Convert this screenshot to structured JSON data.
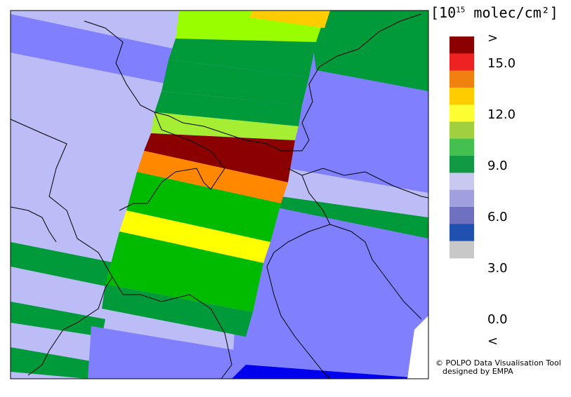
{
  "legend": {
    "unit_prefix": "[10",
    "unit_exp": "15",
    "unit_suffix": " molec/cm²]",
    "labels": [
      ">",
      "15.0",
      "12.0",
      "9.0",
      "6.0",
      "3.0",
      "0.0",
      "<"
    ],
    "colors": [
      "#8b0000",
      "#ee2222",
      "#f08010",
      "#ffcc00",
      "#ffff33",
      "#a0d040",
      "#44c050",
      "#119944",
      "#c8c8f0",
      "#a0a0e0",
      "#7070c0",
      "#2050b0",
      "#c8c8c8"
    ]
  },
  "credit": {
    "line1": "© POLPO Data Visualisation Tool",
    "line2": "designed by EMPA"
  },
  "map_colors": {
    "lavender": "#bcbcf6",
    "periwinkle": "#8080ff",
    "green": "#009a3a",
    "bright_green": "#00bb00",
    "lime": "#99ff00",
    "yellow_green": "#a6ee33",
    "yellow": "#ffff00",
    "orange": "#ff8800",
    "amber": "#ffcc00",
    "dark_red": "#8b0000",
    "blue": "#0000ee",
    "border": "#000000"
  }
}
